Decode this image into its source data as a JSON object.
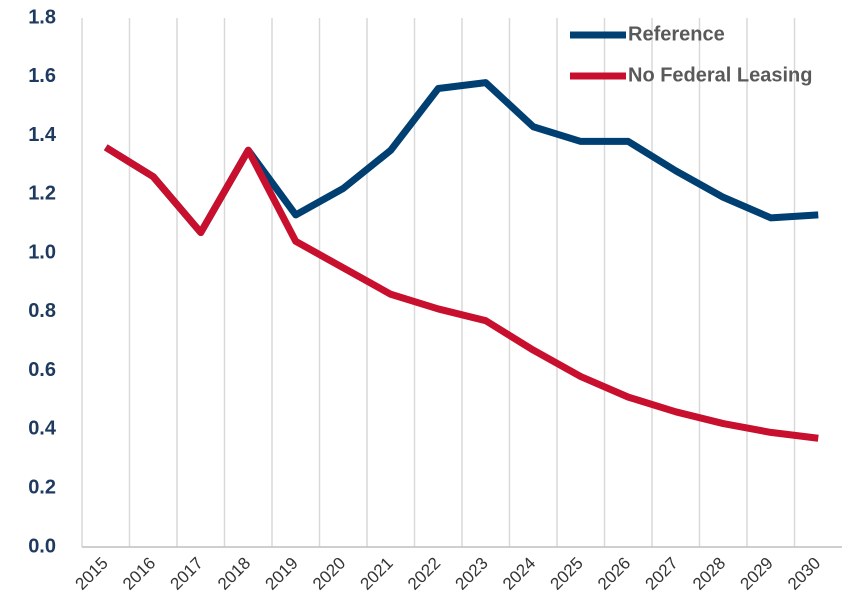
{
  "chart_data": {
    "type": "line",
    "categories": [
      "2015",
      "2016",
      "2017",
      "2018",
      "2019",
      "2020",
      "2021",
      "2022",
      "2023",
      "2024",
      "2025",
      "2026",
      "2027",
      "2028",
      "2029",
      "2030"
    ],
    "series": [
      {
        "name": "Reference",
        "color": "#003f72",
        "values": [
          1.36,
          1.26,
          1.07,
          1.35,
          1.13,
          1.22,
          1.35,
          1.56,
          1.58,
          1.43,
          1.38,
          1.38,
          1.28,
          1.19,
          1.12,
          1.13
        ]
      },
      {
        "name": "No Federal Leasing",
        "color": "#c8102e",
        "values": [
          1.36,
          1.26,
          1.07,
          1.35,
          1.04,
          0.95,
          0.86,
          0.81,
          0.77,
          0.67,
          0.58,
          0.51,
          0.46,
          0.42,
          0.39,
          0.37
        ]
      }
    ],
    "ylim": [
      0,
      1.8
    ],
    "yticks": [
      {
        "value": 0,
        "label": "0.0"
      },
      0.2,
      0.4,
      0.6,
      0.8,
      {
        "value": 1,
        "label": "1.0"
      },
      1.2,
      1.4,
      1.6,
      1.8
    ],
    "grid": "x",
    "legend": "upper right"
  }
}
